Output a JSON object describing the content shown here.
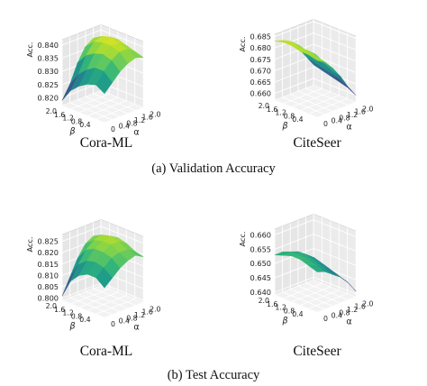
{
  "figure": {
    "row_captions": [
      "(a) Validation Accuracy",
      "(b) Test Accuracy"
    ]
  },
  "chart_data": [
    {
      "type": "surface3d",
      "title": "Cora-ML",
      "row": "(a) Validation Accuracy",
      "zlabel": "Acc.",
      "xlabel": "β",
      "ylabel": "α",
      "beta": [
        0,
        0.4,
        0.8,
        1.2,
        1.6,
        2.0
      ],
      "alpha": [
        0,
        0.4,
        0.8,
        1.2,
        1.6,
        2.0
      ],
      "zlim": [
        0.817,
        0.842
      ],
      "zticks": [
        0.82,
        0.825,
        0.83,
        0.835,
        0.84
      ],
      "beta_ticks": [
        0.4,
        0.8,
        1.2,
        1.6,
        2.0
      ],
      "alpha_ticks": [
        0,
        0.4,
        0.8,
        1.2,
        1.6,
        2.0
      ],
      "values": [
        [
          0.828,
          0.831,
          0.834,
          0.836,
          0.837,
          0.836
        ],
        [
          0.83,
          0.834,
          0.837,
          0.839,
          0.839,
          0.837
        ],
        [
          0.829,
          0.834,
          0.838,
          0.84,
          0.84,
          0.838
        ],
        [
          0.827,
          0.832,
          0.837,
          0.84,
          0.841,
          0.839
        ],
        [
          0.824,
          0.829,
          0.835,
          0.839,
          0.84,
          0.838
        ],
        [
          0.819,
          0.824,
          0.831,
          0.836,
          0.838,
          0.836
        ]
      ]
    },
    {
      "type": "surface3d",
      "title": "CiteSeer",
      "row": "(a) Validation Accuracy",
      "zlabel": "Acc.",
      "xlabel": "β",
      "ylabel": "α",
      "beta": [
        0,
        0.4,
        0.8,
        1.2,
        1.6,
        2.0
      ],
      "alpha": [
        0,
        0.4,
        0.8,
        1.2,
        1.6,
        2.0
      ],
      "zlim": [
        0.657,
        0.686
      ],
      "zticks": [
        0.66,
        0.665,
        0.67,
        0.675,
        0.68,
        0.685
      ],
      "beta_ticks": [
        0.4,
        0.8,
        1.2,
        1.6,
        2.0
      ],
      "alpha_ticks": [
        0,
        0.4,
        0.8,
        1.2,
        1.6,
        2.0
      ],
      "values": [
        [
          0.682,
          0.68,
          0.676,
          0.671,
          0.665,
          0.66
        ],
        [
          0.683,
          0.681,
          0.677,
          0.672,
          0.667,
          0.662
        ],
        [
          0.683,
          0.682,
          0.679,
          0.674,
          0.668,
          0.663
        ],
        [
          0.684,
          0.682,
          0.679,
          0.674,
          0.669,
          0.664
        ],
        [
          0.684,
          0.683,
          0.68,
          0.675,
          0.67,
          0.665
        ],
        [
          0.683,
          0.682,
          0.68,
          0.676,
          0.671,
          0.666
        ]
      ]
    },
    {
      "type": "surface3d",
      "title": "Cora-ML",
      "row": "(b) Test Accuracy",
      "zlabel": "Acc.",
      "xlabel": "β",
      "ylabel": "α",
      "beta": [
        0,
        0.4,
        0.8,
        1.2,
        1.6,
        2.0
      ],
      "alpha": [
        0,
        0.4,
        0.8,
        1.2,
        1.6,
        2.0
      ],
      "zlim": [
        0.799,
        0.828
      ],
      "zticks": [
        0.8,
        0.805,
        0.81,
        0.815,
        0.82,
        0.825
      ],
      "beta_ticks": [
        0.4,
        0.8,
        1.2,
        1.6,
        2.0
      ],
      "alpha_ticks": [
        0,
        0.4,
        0.8,
        1.2,
        1.6,
        2.0
      ],
      "values": [
        [
          0.812,
          0.815,
          0.818,
          0.82,
          0.821,
          0.819
        ],
        [
          0.815,
          0.818,
          0.821,
          0.822,
          0.822,
          0.82
        ],
        [
          0.815,
          0.819,
          0.822,
          0.824,
          0.824,
          0.822
        ],
        [
          0.813,
          0.818,
          0.822,
          0.824,
          0.825,
          0.823
        ],
        [
          0.809,
          0.815,
          0.82,
          0.823,
          0.824,
          0.822
        ],
        [
          0.801,
          0.808,
          0.815,
          0.82,
          0.822,
          0.82
        ]
      ]
    },
    {
      "type": "surface3d",
      "title": "CiteSeer",
      "row": "(b) Test Accuracy",
      "zlabel": "Acc.",
      "xlabel": "β",
      "ylabel": "α",
      "beta": [
        0,
        0.4,
        0.8,
        1.2,
        1.6,
        2.0
      ],
      "alpha": [
        0,
        0.4,
        0.8,
        1.2,
        1.6,
        2.0
      ],
      "zlim": [
        0.639,
        0.662
      ],
      "zticks": [
        0.64,
        0.645,
        0.65,
        0.655,
        0.66
      ],
      "beta_ticks": [
        0.4,
        0.8,
        1.2,
        1.6,
        2.0
      ],
      "alpha_ticks": [
        0,
        0.4,
        0.8,
        1.2,
        1.6,
        2.0
      ],
      "values": [
        [
          0.653,
          0.652,
          0.65,
          0.648,
          0.645,
          0.641
        ],
        [
          0.654,
          0.653,
          0.651,
          0.649,
          0.646,
          0.643
        ],
        [
          0.655,
          0.654,
          0.652,
          0.65,
          0.647,
          0.644
        ],
        [
          0.655,
          0.654,
          0.653,
          0.651,
          0.648,
          0.645
        ],
        [
          0.654,
          0.654,
          0.653,
          0.651,
          0.649,
          0.646
        ],
        [
          0.653,
          0.653,
          0.652,
          0.651,
          0.649,
          0.646
        ]
      ]
    }
  ]
}
